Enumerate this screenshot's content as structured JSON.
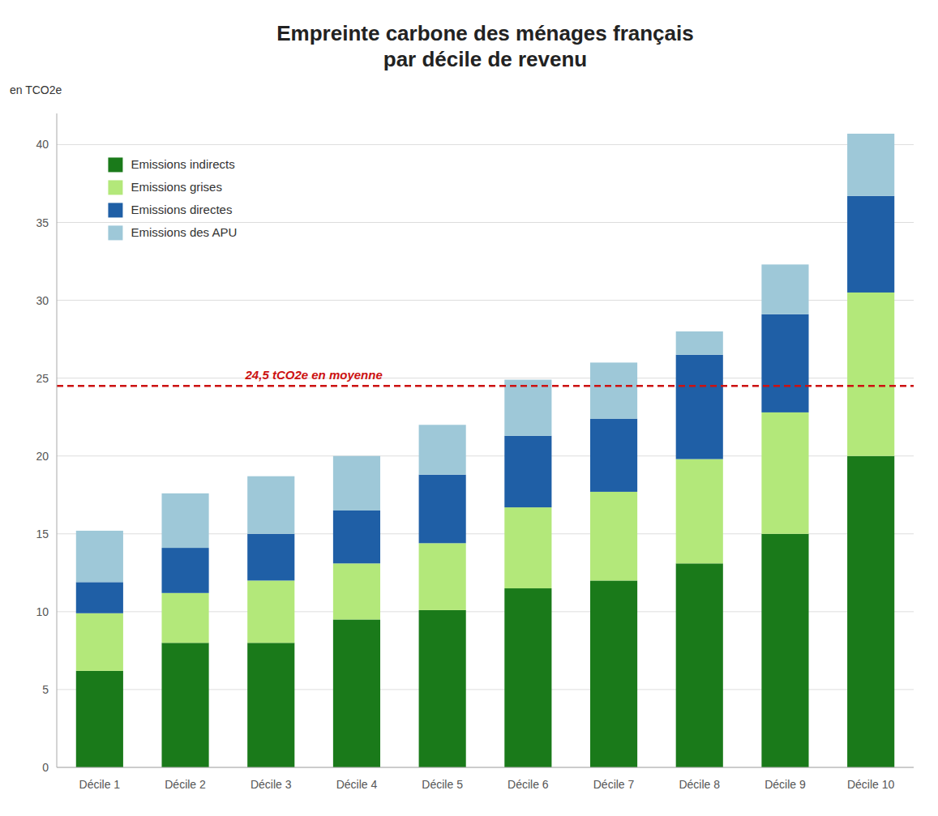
{
  "chart_data": {
    "type": "bar",
    "stacked": true,
    "title": "Empreinte carbone des ménages français\npar décile de revenu",
    "y_label": "en TCO2e",
    "categories": [
      "Décile 1",
      "Décile 2",
      "Décile 3",
      "Décile 4",
      "Décile 5",
      "Décile 6",
      "Décile 7",
      "Décile 8",
      "Décile 9",
      "Décile 10"
    ],
    "series": [
      {
        "name": "Emissions indirects",
        "color": "#1a7a1a",
        "values": [
          6.2,
          8.0,
          8.0,
          9.5,
          10.1,
          11.5,
          12.0,
          13.1,
          15.0,
          20.0
        ]
      },
      {
        "name": "Emissions grises",
        "color": "#b3e87a",
        "values": [
          3.7,
          3.2,
          4.0,
          3.6,
          4.3,
          5.2,
          5.7,
          6.7,
          7.8,
          10.5
        ]
      },
      {
        "name": "Emissions directes",
        "color": "#1f5fa6",
        "values": [
          2.0,
          2.9,
          3.0,
          3.4,
          4.4,
          4.6,
          4.7,
          6.7,
          6.3,
          6.2
        ]
      },
      {
        "name": "Emissions des APU",
        "color": "#9ec8d8",
        "values": [
          3.3,
          3.5,
          3.7,
          3.5,
          3.2,
          3.6,
          3.6,
          1.5,
          3.2,
          4.0
        ]
      }
    ],
    "reference_lines": [
      {
        "value": 24.5,
        "label": "24,5 tCO2e en moyenne",
        "color": "#cc1111"
      }
    ],
    "ylim": [
      0,
      42
    ],
    "yticks": [
      0,
      5,
      10,
      15,
      20,
      25,
      30,
      35,
      40
    ],
    "grid": true,
    "legend": "upper left"
  }
}
